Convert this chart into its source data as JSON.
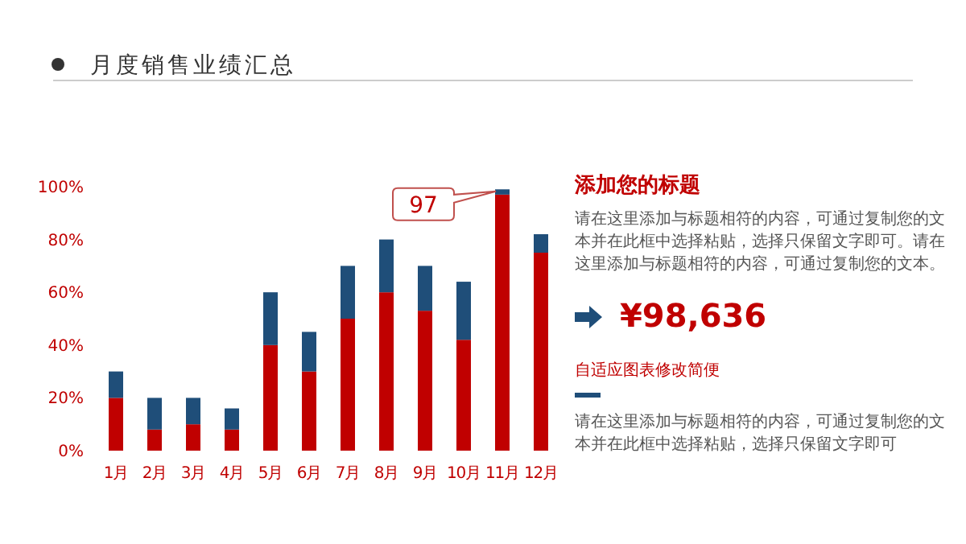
{
  "chart_data": [
    {
      "type": "bar",
      "title": "月度销售业绩汇总",
      "stacked": true,
      "categories": [
        "1月",
        "2月",
        "3月",
        "4月",
        "5月",
        "6月",
        "7月",
        "8月",
        "9月",
        "10月",
        "11月",
        "12月"
      ],
      "series": [
        {
          "color": "#c00000",
          "values": [
            20,
            8,
            10,
            8,
            40,
            30,
            50,
            60,
            53,
            42,
            97,
            75
          ]
        },
        {
          "color": "#1f4e79",
          "values": [
            10,
            12,
            10,
            8,
            20,
            15,
            20,
            20,
            17,
            22,
            2,
            7
          ]
        }
      ],
      "ylim": [
        0,
        100
      ],
      "yticks": [
        {
          "value": 0,
          "label": "0%"
        },
        {
          "value": 20,
          "label": "20%"
        },
        {
          "value": 40,
          "label": "40%"
        },
        {
          "value": 60,
          "label": "60%"
        },
        {
          "value": 80,
          "label": "80%"
        },
        {
          "value": 100,
          "label": "100%"
        }
      ],
      "grid": false,
      "annotations": [
        {
          "text": "97",
          "x": "11月",
          "y": 97
        }
      ]
    },
    {
      "type": "other",
      "title": "添加您的标题",
      "annotations": [
        "请在这里添加与标题相符的内容，可通过复制您的文本并在此框中选择粘贴，选择只保留文字即可。请在这里添加与标题相符的内容，可通过复制您的文本。",
        "¥98,636",
        "自适应图表修改简便",
        "请在这里添加与标题相符的内容，可通过复制您的文本并在此框中选择粘贴，选择只保留文字即可"
      ]
    }
  ]
}
